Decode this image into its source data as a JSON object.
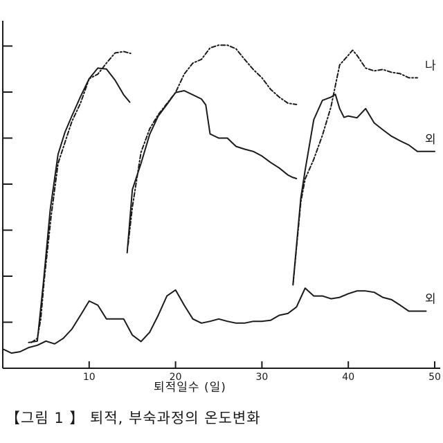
{
  "chart_data": {
    "type": "line",
    "title": "",
    "xlabel": "퇴적일수 (일)",
    "ylabel": "",
    "xlim": [
      0,
      50
    ],
    "ylim": [
      -10,
      70
    ],
    "x_ticks": [
      10,
      20,
      30,
      40,
      50
    ],
    "x_tick_labels": [
      "10",
      "20",
      "30",
      "40",
      "50"
    ],
    "y_ticks": [
      0,
      10,
      20,
      30,
      40,
      50,
      60
    ],
    "grid": false,
    "series": [
      {
        "name": "나",
        "style": "dash-dot",
        "color": "#1a1a1a",
        "segments": [
          [
            [
              3.3,
              -4.4
            ],
            [
              4.0,
              -3.5
            ],
            [
              4.4,
              0.7
            ],
            [
              4.8,
              9.2
            ],
            [
              5.6,
              23.1
            ],
            [
              6.4,
              34.5
            ],
            [
              7.2,
              39.1
            ],
            [
              8.0,
              43.6
            ],
            [
              9.0,
              47.6
            ],
            [
              10.0,
              52.9
            ],
            [
              11.0,
              53.9
            ],
            [
              12.0,
              56.3
            ],
            [
              13.0,
              58.5
            ],
            [
              14.0,
              58.8
            ],
            [
              14.8,
              58.4
            ]
          ],
          [
            [
              14.5,
              16.8
            ],
            [
              15.0,
              25.0
            ],
            [
              16.0,
              36.9
            ],
            [
              17.0,
              42.0
            ],
            [
              18.0,
              45.1
            ],
            [
              19.0,
              47.5
            ],
            [
              20.0,
              49.9
            ],
            [
              21.0,
              53.9
            ],
            [
              22.0,
              56.3
            ],
            [
              23.0,
              57.1
            ],
            [
              24.0,
              59.6
            ],
            [
              25.0,
              60.2
            ],
            [
              26.0,
              60.2
            ],
            [
              27.0,
              59.4
            ],
            [
              28.0,
              57.1
            ],
            [
              29.0,
              54.9
            ],
            [
              30.0,
              53.1
            ],
            [
              31.0,
              50.6
            ],
            [
              32.0,
              48.9
            ],
            [
              33.0,
              47.6
            ],
            [
              34.0,
              47.3
            ]
          ],
          [
            [
              33.6,
              8.1
            ],
            [
              34.5,
              26.1
            ],
            [
              35.0,
              31.1
            ],
            [
              36.0,
              35.4
            ],
            [
              37.0,
              40.6
            ],
            [
              38.0,
              46.8
            ],
            [
              38.5,
              51.4
            ],
            [
              39.0,
              55.9
            ],
            [
              40.0,
              58.0
            ],
            [
              40.5,
              59.1
            ],
            [
              41.0,
              58.0
            ],
            [
              42.0,
              55.2
            ],
            [
              43.0,
              54.6
            ],
            [
              44.0,
              54.9
            ],
            [
              45.0,
              54.3
            ],
            [
              46.0,
              54.0
            ],
            [
              47.0,
              53.1
            ],
            [
              48.0,
              53.1
            ]
          ]
        ]
      },
      {
        "name": "외",
        "style": "solid",
        "color": "#1a1a1a",
        "segments": [
          [
            [
              3.0,
              -4.4
            ],
            [
              4.0,
              -4.1
            ],
            [
              4.7,
              8.6
            ],
            [
              5.5,
              24.5
            ],
            [
              6.4,
              36.5
            ],
            [
              7.2,
              41.3
            ],
            [
              8.0,
              44.8
            ],
            [
              9.0,
              49.0
            ],
            [
              10.0,
              52.9
            ],
            [
              11.0,
              55.2
            ],
            [
              12.0,
              55.0
            ],
            [
              13.0,
              52.6
            ],
            [
              14.0,
              49.4
            ],
            [
              14.7,
              47.8
            ]
          ],
          [
            [
              14.4,
              15.1
            ],
            [
              15.0,
              28.8
            ],
            [
              16.0,
              34.5
            ],
            [
              17.0,
              40.8
            ],
            [
              18.0,
              44.8
            ],
            [
              19.0,
              47.3
            ],
            [
              20.0,
              49.9
            ],
            [
              21.0,
              50.3
            ],
            [
              22.0,
              49.4
            ],
            [
              23.0,
              48.5
            ],
            [
              23.5,
              47.2
            ],
            [
              24.0,
              40.9
            ],
            [
              25.0,
              40.0
            ],
            [
              26.0,
              40.0
            ],
            [
              27.0,
              38.2
            ],
            [
              28.0,
              37.6
            ],
            [
              29.0,
              37.1
            ],
            [
              30.0,
              36.1
            ],
            [
              31.0,
              34.7
            ],
            [
              32.0,
              33.5
            ],
            [
              33.0,
              32.0
            ],
            [
              33.5,
              31.5
            ],
            [
              34.0,
              31.2
            ]
          ],
          [
            [
              33.6,
              8.2
            ],
            [
              34.5,
              27.0
            ],
            [
              35.0,
              33.0
            ],
            [
              36.0,
              44.0
            ],
            [
              37.0,
              48.2
            ],
            [
              38.0,
              48.9
            ],
            [
              38.5,
              49.5
            ],
            [
              39.0,
              46.4
            ],
            [
              39.5,
              44.5
            ],
            [
              40.0,
              44.8
            ],
            [
              41.0,
              44.4
            ],
            [
              42.0,
              46.4
            ],
            [
              43.0,
              43.3
            ],
            [
              44.0,
              41.8
            ],
            [
              45.0,
              40.4
            ],
            [
              46.0,
              39.4
            ],
            [
              47.0,
              38.5
            ],
            [
              48.0,
              37.1
            ],
            [
              49.0,
              37.1
            ],
            [
              50.0,
              37.1
            ]
          ]
        ]
      },
      {
        "name": "외",
        "style": "solid",
        "color": "#1a1a1a",
        "segments": [
          [
            [
              0.0,
              -5.8
            ],
            [
              1.0,
              -6.7
            ],
            [
              2.0,
              -6.4
            ],
            [
              3.0,
              -5.5
            ],
            [
              4.0,
              -5.0
            ],
            [
              5.0,
              -4.1
            ],
            [
              6.0,
              -4.7
            ],
            [
              7.0,
              -3.5
            ],
            [
              8.0,
              -1.5
            ],
            [
              9.0,
              1.5
            ],
            [
              10.0,
              4.6
            ],
            [
              11.0,
              3.7
            ],
            [
              12.0,
              0.7
            ],
            [
              13.0,
              0.7
            ],
            [
              14.0,
              0.7
            ],
            [
              15.0,
              -2.8
            ],
            [
              16.0,
              -4.2
            ],
            [
              17.0,
              -2.2
            ],
            [
              18.0,
              1.5
            ],
            [
              19.0,
              5.7
            ],
            [
              20.0,
              7.0
            ],
            [
              21.0,
              3.7
            ],
            [
              22.0,
              0.7
            ],
            [
              23.0,
              -0.2
            ],
            [
              24.0,
              0.2
            ],
            [
              25.0,
              0.7
            ],
            [
              26.0,
              0.2
            ],
            [
              27.0,
              -0.2
            ],
            [
              28.0,
              -0.2
            ],
            [
              29.0,
              0.2
            ],
            [
              30.0,
              0.2
            ],
            [
              31.0,
              0.4
            ],
            [
              32.0,
              1.5
            ],
            [
              33.0,
              1.9
            ],
            [
              34.0,
              3.3
            ],
            [
              35.0,
              7.4
            ],
            [
              36.0,
              5.7
            ],
            [
              37.0,
              5.7
            ],
            [
              38.0,
              5.1
            ],
            [
              39.0,
              5.4
            ],
            [
              40.0,
              6.2
            ],
            [
              41.0,
              6.8
            ],
            [
              42.0,
              6.8
            ],
            [
              43.0,
              6.5
            ],
            [
              44.0,
              5.4
            ],
            [
              45.0,
              4.9
            ],
            [
              46.0,
              3.7
            ],
            [
              47.0,
              2.4
            ],
            [
              48.0,
              2.4
            ],
            [
              49.0,
              2.4
            ]
          ]
        ]
      }
    ]
  },
  "caption": "【그림 1 】 퇴적, 부숙과정의 온도변화"
}
